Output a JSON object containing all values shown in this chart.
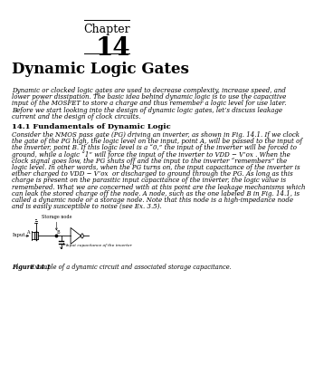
{
  "chapter_label": "Chapter",
  "chapter_number": "14",
  "title": "Dynamic Logic Gates",
  "body_text": "Dynamic or clocked logic gates are used to decrease complexity, increase speed, and\nlower power dissipation. The basic idea behind dynamic logic is to use the capacitive\ninput of the MOSFET to store a charge and thus remember a logic level for use later.\nBefore we start looking into the design of dynamic logic gates, let’s discuss leakage\ncurrent and the design of clock circuits.",
  "section_title": "14.1 Fundamentals of Dynamic Logic",
  "section_text_lines": [
    "Consider the NMOS pass gate (PG) driving an inverter, as shown in Fig. 14.1. If we clock",
    "the gate of the PG high, the logic level on the input, point A, will be passed to the input of",
    "the inverter, point B. If this logic level is a “0,” the input of the inverter will be forced to",
    "ground, while a logic “1” will force the input of the inverter to VDD − V’ox . When the",
    "clock signal goes low, the PG shuts off and the input to the inverter “remembers” the",
    "logic level. In other words, when the PG turns on, the input capacitance of the inverter is",
    "either charged to VDD − V’ox  or discharged to ground through the PG. As long as this",
    "charge is present on the parasitic input capacitance of the inverter, the logic value is",
    "remembered. What we are concerned with at this point are the leakage mechanisms which",
    "can leak the stored charge off the node. A node, such as the one labeled B in Fig. 14.1, is",
    "called a dynamic node or a storage node. Note that this node is a high-impedance node",
    "and is easily susceptible to noise (see Ex. 3.5)."
  ],
  "figure_caption_bold": "Figure 14.1",
  "figure_caption_rest": "   Example of a dynamic circuit and associated storage capacitance.",
  "bg_color": "#ffffff",
  "text_color": "#000000",
  "body_fontsize": 5.0,
  "section_fontsize": 6.0,
  "chapter_fontsize_label": 9,
  "chapter_fontsize_num": 20,
  "title_fontsize": 12,
  "caption_fontsize": 4.8
}
